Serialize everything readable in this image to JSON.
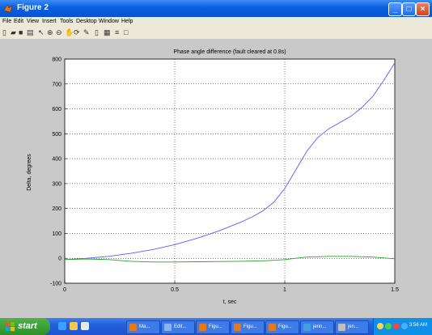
{
  "window": {
    "title": "Figure 2"
  },
  "menu": [
    "File",
    "Edit",
    "View",
    "Insert",
    "Tools",
    "Desktop",
    "Window",
    "Help"
  ],
  "toolbar": {
    "icons": [
      "new-icon",
      "open-icon",
      "save-icon",
      "print-icon",
      "arrow-icon",
      "zoom-in-icon",
      "zoom-out-icon",
      "pan-icon",
      "rotate-icon",
      "data-cursor-icon",
      "colorbar-icon",
      "legend-icon",
      "grid-icon",
      "plot-tools-icon"
    ]
  },
  "chart_data": {
    "type": "line",
    "title": "Phase angle difference (fault cleared at 0.8s)",
    "xlabel": "t, sec",
    "ylabel": "Delta, degrees",
    "xlim": [
      0,
      1.5
    ],
    "ylim": [
      -100,
      800
    ],
    "xticks": [
      "0",
      "0.5",
      "1",
      "1.5"
    ],
    "yticks": [
      "-100",
      "0",
      "100",
      "200",
      "300",
      "400",
      "500",
      "600",
      "700",
      "800"
    ],
    "grid": true,
    "series": [
      {
        "color": "#5b5bff",
        "x": [
          0,
          0.1,
          0.2,
          0.3,
          0.4,
          0.5,
          0.6,
          0.7,
          0.8,
          0.85,
          0.9,
          0.95,
          1.0,
          1.05,
          1.1,
          1.15,
          1.2,
          1.25,
          1.3,
          1.35,
          1.4,
          1.45,
          1.5
        ],
        "y": [
          -5,
          0,
          8,
          20,
          35,
          55,
          80,
          110,
          145,
          165,
          190,
          225,
          280,
          355,
          430,
          485,
          520,
          545,
          570,
          605,
          650,
          715,
          785
        ]
      },
      {
        "color": "#2aa02a",
        "x": [
          0,
          0.1,
          0.2,
          0.3,
          0.4,
          0.5,
          0.6,
          0.7,
          0.8,
          0.9,
          0.95,
          1.0,
          1.05,
          1.1,
          1.2,
          1.3,
          1.4,
          1.5
        ],
        "y": [
          -5,
          -3,
          -5,
          -12,
          -15,
          -15,
          -14,
          -13,
          -12,
          -10,
          -8,
          -5,
          0,
          5,
          8,
          8,
          5,
          -2
        ]
      }
    ]
  },
  "taskbar": {
    "start_label": "start",
    "tasks": [
      {
        "label": "Ma...",
        "color": "#e07a20"
      },
      {
        "label": "Edit...",
        "color": "#8ab4f0"
      },
      {
        "label": "Figu...",
        "color": "#e07a20"
      },
      {
        "label": "Figu...",
        "color": "#e07a20"
      },
      {
        "label": "Figu...",
        "color": "#e07a20"
      },
      {
        "label": "jenn...",
        "color": "#40a0e0"
      },
      {
        "label": "jen...",
        "color": "#c0c0c0"
      }
    ],
    "clock": "3:56 AM"
  }
}
